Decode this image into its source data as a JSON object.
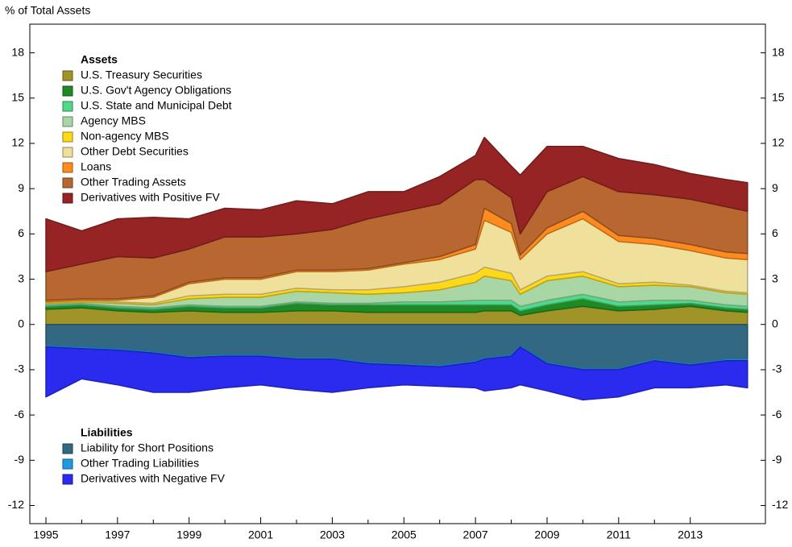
{
  "chart_data": {
    "type": "stacked-area",
    "y_label": "% of Total Assets",
    "x": [
      1995,
      1996,
      1997,
      1998,
      1999,
      2000,
      2001,
      2002,
      2003,
      2004,
      2005,
      2006,
      2007,
      2007.25,
      2008,
      2008.25,
      2009,
      2010,
      2011,
      2012,
      2013,
      2014,
      2014.6
    ],
    "xlim": [
      1994.55,
      2015.1
    ],
    "xticks": [
      1995,
      1997,
      1999,
      2001,
      2003,
      2005,
      2007,
      2009,
      2011,
      2013
    ],
    "ylim": [
      -13.2,
      19.9
    ],
    "yticks": [
      -12,
      -9,
      -6,
      -3,
      0,
      3,
      6,
      9,
      12,
      15,
      18
    ],
    "groups": [
      {
        "name": "Assets",
        "series": [
          {
            "name": "U.S. Treasury Securities",
            "color": "#a09428",
            "values": [
              1.0,
              1.1,
              0.9,
              0.8,
              0.9,
              0.8,
              0.8,
              0.9,
              0.9,
              0.8,
              0.8,
              0.8,
              0.8,
              0.9,
              0.9,
              0.6,
              0.9,
              1.2,
              0.9,
              1.0,
              1.2,
              0.9,
              0.8
            ]
          },
          {
            "name": "U.S. Gov't Agency Obligations",
            "color": "#1f8a24",
            "values": [
              0.2,
              0.2,
              0.2,
              0.2,
              0.3,
              0.3,
              0.3,
              0.5,
              0.4,
              0.5,
              0.5,
              0.5,
              0.5,
              0.4,
              0.4,
              0.3,
              0.4,
              0.5,
              0.3,
              0.3,
              0.2,
              0.2,
              0.2
            ]
          },
          {
            "name": "U.S. State and Municipal Debt",
            "color": "#4fd98a",
            "values": [
              0.1,
              0.1,
              0.1,
              0.1,
              0.1,
              0.1,
              0.1,
              0.1,
              0.1,
              0.1,
              0.2,
              0.2,
              0.3,
              0.3,
              0.3,
              0.3,
              0.3,
              0.3,
              0.3,
              0.3,
              0.2,
              0.2,
              0.2
            ]
          },
          {
            "name": "Agency MBS",
            "color": "#a8d6a4",
            "values": [
              0.1,
              0.1,
              0.2,
              0.2,
              0.4,
              0.6,
              0.6,
              0.7,
              0.7,
              0.6,
              0.6,
              0.8,
              1.2,
              1.6,
              1.3,
              0.8,
              1.3,
              1.2,
              1.0,
              1.0,
              0.9,
              0.8,
              0.8
            ]
          },
          {
            "name": "Non-agency MBS",
            "color": "#ffd817",
            "values": [
              0.1,
              0.1,
              0.1,
              0.1,
              0.2,
              0.2,
              0.2,
              0.2,
              0.2,
              0.3,
              0.4,
              0.5,
              0.6,
              0.6,
              0.5,
              0.3,
              0.3,
              0.3,
              0.2,
              0.2,
              0.1,
              0.1,
              0.1
            ]
          },
          {
            "name": "Other Debt Securities",
            "color": "#efe09c",
            "values": [
              0,
              0,
              0.1,
              0.4,
              0.8,
              1.0,
              1.0,
              1.1,
              1.2,
              1.3,
              1.5,
              1.5,
              1.6,
              3.1,
              2.7,
              2.0,
              2.8,
              3.5,
              2.8,
              2.5,
              2.3,
              2.2,
              2.2
            ]
          },
          {
            "name": "Loans",
            "color": "#ff8a1e",
            "values": [
              0.1,
              0.1,
              0.1,
              0.1,
              0.1,
              0.1,
              0.1,
              0.1,
              0.1,
              0.1,
              0.1,
              0.2,
              0.3,
              0.8,
              0.6,
              0.3,
              0.4,
              0.5,
              0.4,
              0.4,
              0.4,
              0.4,
              0.4
            ]
          },
          {
            "name": "Other Trading Assets",
            "color": "#b7672f",
            "values": [
              1.9,
              2.3,
              2.8,
              2.5,
              2.2,
              2.7,
              2.7,
              2.4,
              2.7,
              3.3,
              3.4,
              3.5,
              4.3,
              1.9,
              1.7,
              1.4,
              2.4,
              2.3,
              2.9,
              2.9,
              3.0,
              3.0,
              2.8
            ]
          },
          {
            "name": "Derivatives with Positive FV",
            "color": "#962424",
            "values": [
              3.5,
              2.2,
              2.5,
              2.7,
              2.0,
              1.9,
              1.8,
              2.2,
              1.7,
              1.8,
              1.3,
              1.8,
              1.6,
              2.8,
              2.1,
              3.9,
              3.0,
              2.0,
              2.2,
              2.0,
              1.7,
              1.8,
              1.9
            ]
          }
        ]
      },
      {
        "name": "Liabilities",
        "series": [
          {
            "name": "Liability for Short Positions",
            "color": "#336882",
            "values": [
              -1.4,
              -1.5,
              -1.6,
              -1.8,
              -2.1,
              -2.0,
              -2.0,
              -2.2,
              -2.2,
              -2.5,
              -2.6,
              -2.7,
              -2.4,
              -2.2,
              -2.0,
              -1.4,
              -2.5,
              -2.9,
              -2.9,
              -2.3,
              -2.6,
              -2.3,
              -2.3
            ]
          },
          {
            "name": "Other Trading Liabilities",
            "color": "#1e9ae0",
            "values": [
              -0.1,
              -0.1,
              -0.1,
              -0.1,
              -0.1,
              -0.1,
              -0.1,
              -0.1,
              -0.1,
              -0.1,
              -0.1,
              -0.1,
              -0.1,
              -0.1,
              -0.1,
              -0.1,
              -0.1,
              -0.1,
              -0.1,
              -0.1,
              -0.1,
              -0.1,
              -0.1
            ]
          },
          {
            "name": "Derivatives with Negative FV",
            "color": "#2b2bf0",
            "values": [
              -3.3,
              -2.0,
              -2.3,
              -2.6,
              -2.3,
              -2.1,
              -1.9,
              -2.0,
              -2.2,
              -1.6,
              -1.3,
              -1.3,
              -1.7,
              -2.1,
              -2.1,
              -2.5,
              -1.8,
              -2.0,
              -1.8,
              -1.8,
              -1.5,
              -1.6,
              -1.8
            ]
          }
        ]
      }
    ]
  }
}
